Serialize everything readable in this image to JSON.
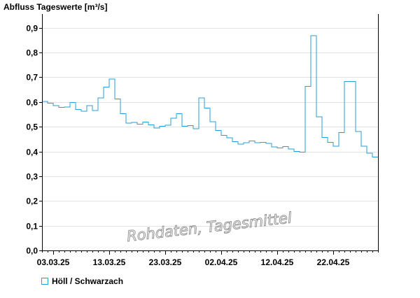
{
  "chart_data": {
    "type": "line",
    "step": true,
    "title": "Abfluss Tageswerte [m³/s]",
    "watermark": "Rohdaten, Tagesmittel",
    "ylim": [
      0,
      0.95
    ],
    "yticks": [
      0,
      0.1,
      0.2,
      0.3,
      0.4,
      0.5,
      0.6,
      0.7,
      0.8,
      0.9
    ],
    "ytick_labels": [
      "0,0",
      "0,1",
      "0,2",
      "0,3",
      "0,4",
      "0,5",
      "0,6",
      "0,7",
      "0,8",
      "0,9"
    ],
    "x_start": "01.03.25",
    "x_end": "29.04.25",
    "xticks": [
      "03.03.25",
      "13.03.25",
      "23.03.25",
      "02.04.25",
      "12.04.25",
      "22.04.25"
    ],
    "grid": true,
    "legend_position": "bottom-left",
    "series": [
      {
        "name": "Höll / Schwarzach",
        "color": "#2a9fd6",
        "x": [
          "01.03.25",
          "02.03.25",
          "03.03.25",
          "04.03.25",
          "05.03.25",
          "06.03.25",
          "07.03.25",
          "08.03.25",
          "09.03.25",
          "10.03.25",
          "11.03.25",
          "12.03.25",
          "13.03.25",
          "14.03.25",
          "15.03.25",
          "16.03.25",
          "17.03.25",
          "18.03.25",
          "19.03.25",
          "20.03.25",
          "21.03.25",
          "22.03.25",
          "23.03.25",
          "24.03.25",
          "25.03.25",
          "26.03.25",
          "27.03.25",
          "28.03.25",
          "29.03.25",
          "30.03.25",
          "31.03.25",
          "01.04.25",
          "02.04.25",
          "03.04.25",
          "04.04.25",
          "05.04.25",
          "06.04.25",
          "07.04.25",
          "08.04.25",
          "09.04.25",
          "10.04.25",
          "11.04.25",
          "12.04.25",
          "13.04.25",
          "14.04.25",
          "15.04.25",
          "16.04.25",
          "17.04.25",
          "18.04.25",
          "19.04.25",
          "20.04.25",
          "21.04.25",
          "22.04.25",
          "23.04.25",
          "24.04.25",
          "25.04.25",
          "26.04.25",
          "27.04.25",
          "28.04.25",
          "29.04.25"
        ],
        "values": [
          0.602,
          0.595,
          0.585,
          0.578,
          0.58,
          0.598,
          0.57,
          0.563,
          0.585,
          0.565,
          0.617,
          0.66,
          0.693,
          0.612,
          0.553,
          0.515,
          0.518,
          0.51,
          0.519,
          0.508,
          0.495,
          0.502,
          0.506,
          0.535,
          0.553,
          0.502,
          0.505,
          0.492,
          0.617,
          0.576,
          0.52,
          0.485,
          0.465,
          0.455,
          0.44,
          0.43,
          0.435,
          0.443,
          0.435,
          0.437,
          0.432,
          0.418,
          0.414,
          0.42,
          0.41,
          0.4,
          0.397,
          0.663,
          0.868,
          0.54,
          0.456,
          0.437,
          0.422,
          0.477,
          0.683,
          0.683,
          0.48,
          0.422,
          0.393,
          0.378
        ]
      }
    ]
  }
}
